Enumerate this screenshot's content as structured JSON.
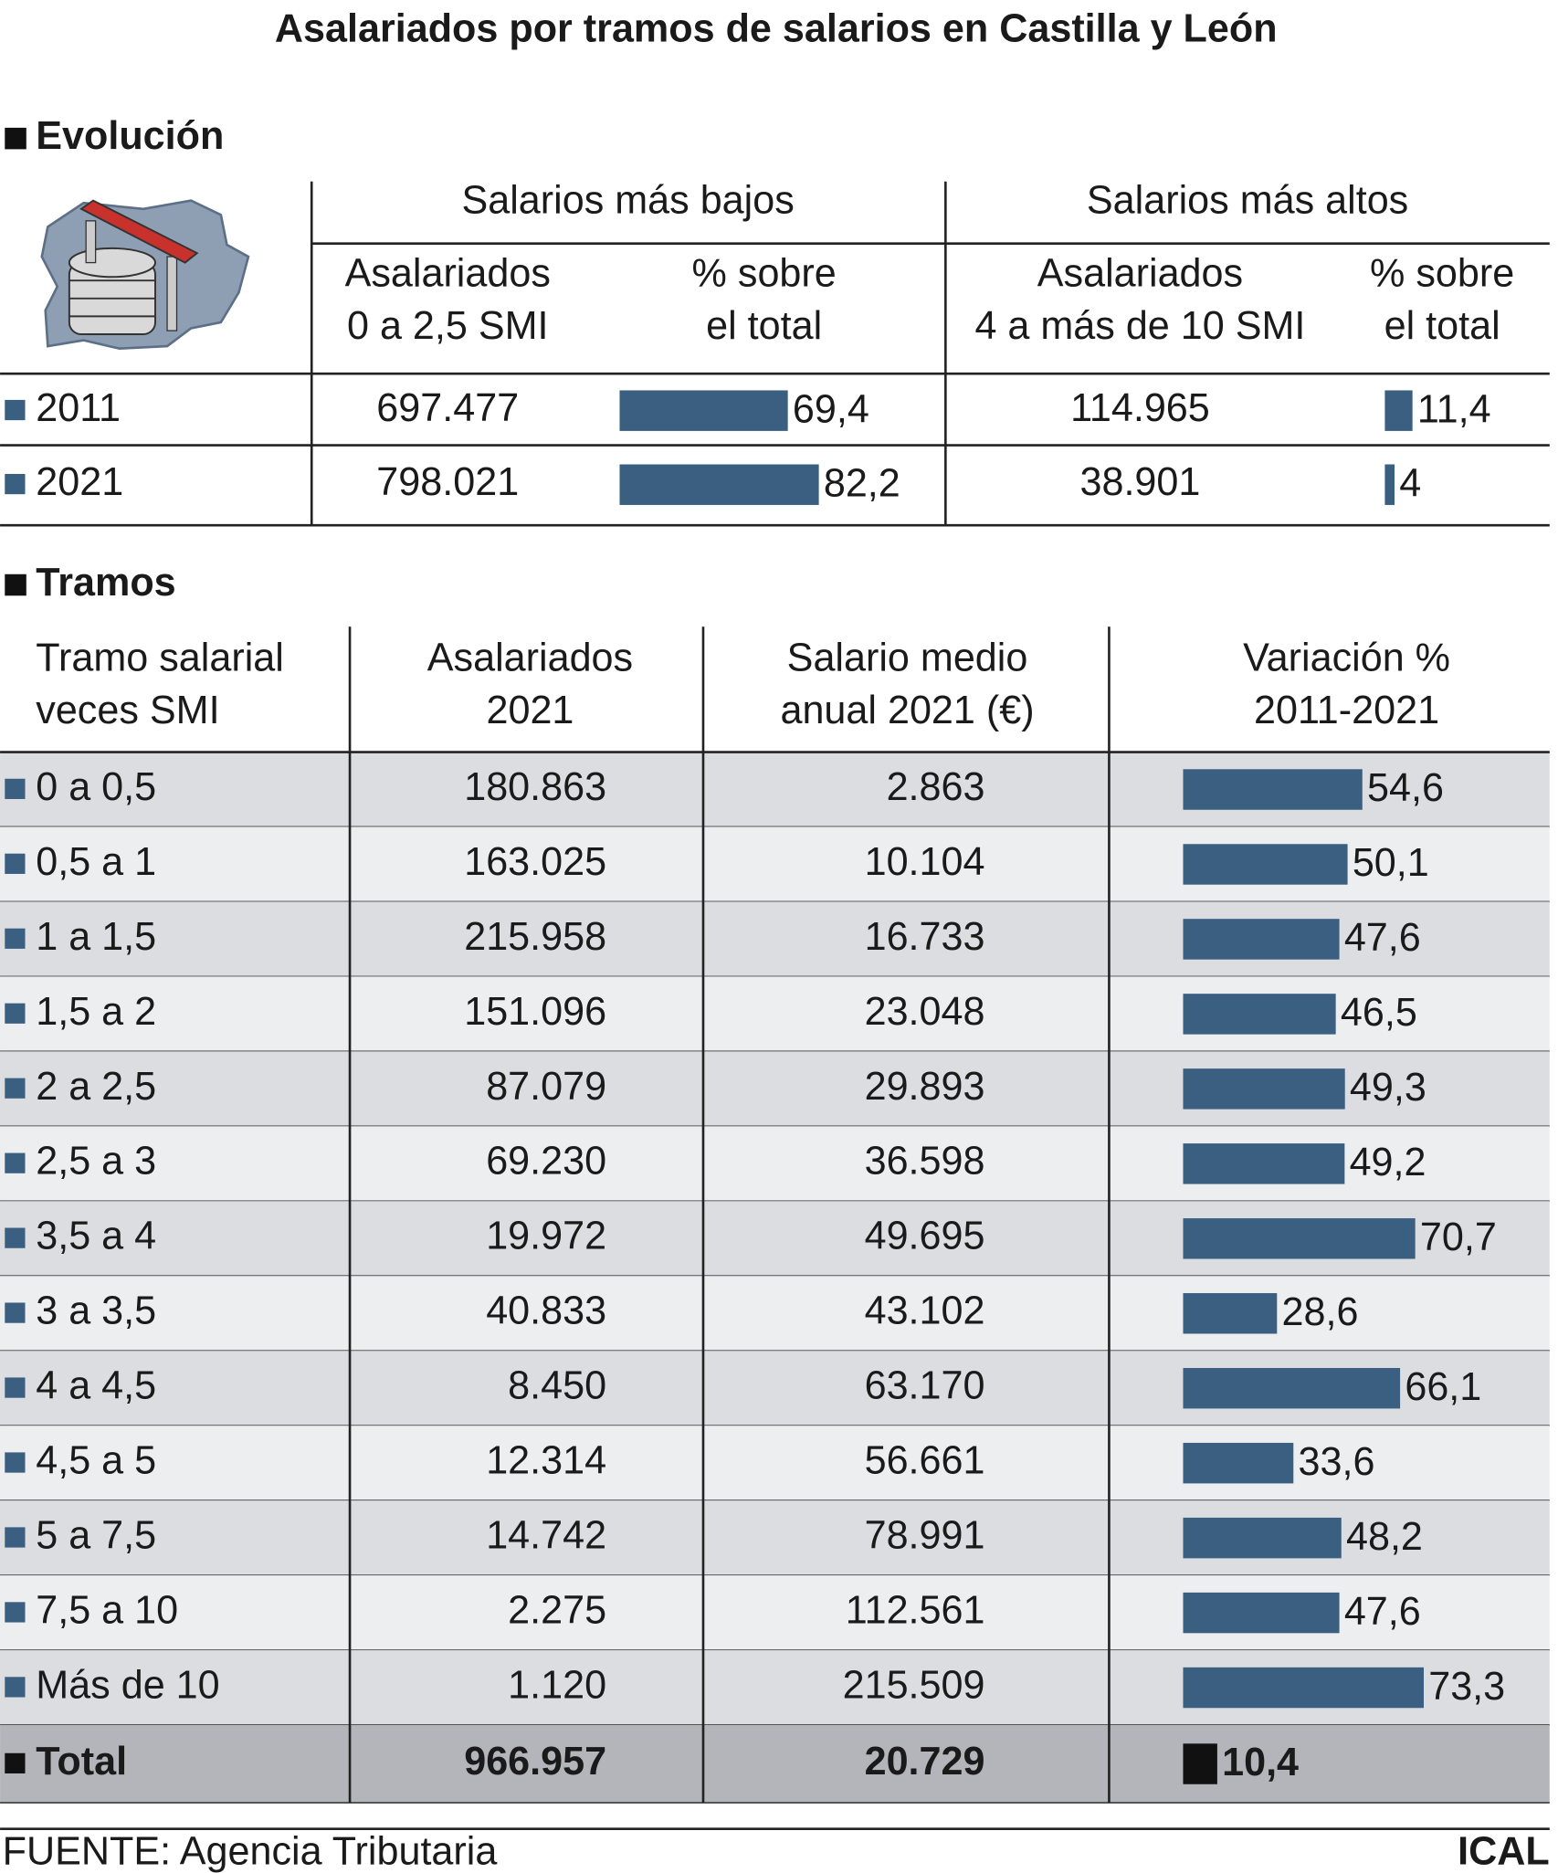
{
  "title": "Asalariados por tramos de salarios en Castilla y León",
  "evolucion": {
    "heading": "Evolución",
    "groups": [
      "Salarios más bajos",
      "Salarios más altos"
    ],
    "columns": [
      [
        "Asalariados",
        "0 a 2,5 SMI"
      ],
      [
        "% sobre",
        "el total"
      ],
      [
        "Asalariados",
        "4 a más de 10 SMI"
      ],
      [
        "% sobre",
        "el total"
      ]
    ],
    "rows": [
      {
        "year": "2011",
        "low_count": "697.477",
        "low_pct": {
          "value": 69.4,
          "label": "69,4"
        },
        "high_count": "114.965",
        "high_pct": {
          "value": 11.4,
          "label": "11,4"
        }
      },
      {
        "year": "2021",
        "low_count": "798.021",
        "low_pct": {
          "value": 82.2,
          "label": "82,2"
        },
        "high_count": "38.901",
        "high_pct": 4
      }
    ]
  },
  "tramos": {
    "heading": "Tramos",
    "columns": [
      [
        "Tramo salarial",
        "veces SMI"
      ],
      [
        "Asalariados",
        "2021"
      ],
      [
        "Salario medio",
        "anual 2021 (€)"
      ],
      [
        "Variación %",
        "2011-2021"
      ]
    ],
    "rows": [
      [
        "0 a 0,5",
        "180.863",
        "2.863",
        {
          "value": 54.6,
          "label": "54,6"
        }
      ],
      [
        "0,5 a 1",
        "163.025",
        "10.104",
        {
          "value": 50.1,
          "label": "50,1"
        }
      ],
      [
        "1 a 1,5",
        "215.958",
        "16.733",
        {
          "value": 47.6,
          "label": "47,6"
        }
      ],
      [
        "1,5 a 2",
        "151.096",
        "23.048",
        {
          "value": 46.5,
          "label": "46,5"
        }
      ],
      [
        "2 a 2,5",
        "87.079",
        "29.893",
        {
          "value": 49.3,
          "label": "49,3"
        }
      ],
      [
        "2,5 a 3",
        "69.230",
        "36.598",
        {
          "value": 49.2,
          "label": "49,2"
        }
      ],
      [
        "3,5 a 4",
        "19.972",
        "49.695",
        {
          "value": 70.7,
          "label": "70,7"
        }
      ],
      [
        "3 a 3,5",
        "40.833",
        "43.102",
        {
          "value": 28.6,
          "label": "28,6"
        }
      ],
      [
        "4 a 4,5",
        "8.450",
        "63.170",
        {
          "value": 66.1,
          "label": "66,1"
        }
      ],
      [
        "4,5 a 5",
        "12.314",
        "56.661",
        {
          "value": 33.6,
          "label": "33,6"
        }
      ],
      [
        "5 a 7,5",
        "14.742",
        "78.991",
        {
          "value": 48.2,
          "label": "48,2"
        }
      ],
      [
        "7,5 a 10",
        "2.275",
        "112.561",
        {
          "value": 47.6,
          "label": "47,6"
        }
      ],
      [
        "Más de 10",
        "1.120",
        "215.509",
        {
          "value": 73.3,
          "label": "73,3"
        }
      ]
    ],
    "total": [
      "Total",
      "966.957",
      "20.729",
      {
        "value": 10.4,
        "label": "10,4"
      }
    ]
  },
  "footer": {
    "source": "FUENTE: Agencia Tributaria",
    "brand": "ICAL"
  }
}
